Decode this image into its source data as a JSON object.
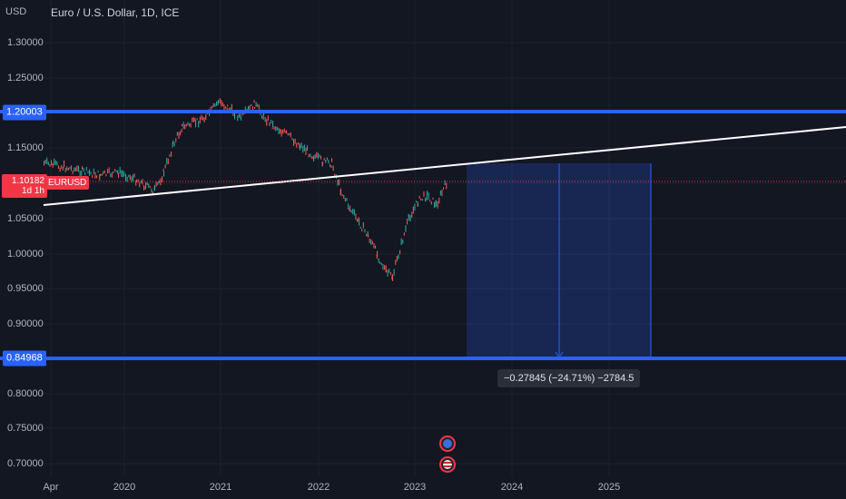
{
  "header": {
    "currency_label": "USD",
    "title": "Euro / U.S. Dollar, 1D, ICE"
  },
  "price_axis": {
    "ticks": [
      "1.30000",
      "1.25000",
      "1.20003",
      "1.15000",
      "1.10182",
      "1.05000",
      "1.00000",
      "0.95000",
      "0.90000",
      "0.84968",
      "0.80000",
      "0.75000",
      "0.70000"
    ]
  },
  "time_axis": {
    "ticks": [
      "Apr",
      "2020",
      "2021",
      "2022",
      "2023",
      "2024",
      "2025"
    ]
  },
  "current_price": {
    "value": "1.10182",
    "countdown": "1d 1h",
    "symbol": "EURUSD",
    "color": "#f23645"
  },
  "levels": {
    "upper": "1.20003",
    "lower": "0.84968",
    "color": "#2962ff"
  },
  "measure": {
    "label": "−0.27845 (−24.71%) −2784.5"
  },
  "events": {
    "icons": [
      "globe-event-icon",
      "us-flag-event-icon"
    ]
  },
  "colors": {
    "background": "#131722",
    "up": "#26a69a",
    "down": "#ef5350",
    "trendline": "#ffffff"
  }
}
